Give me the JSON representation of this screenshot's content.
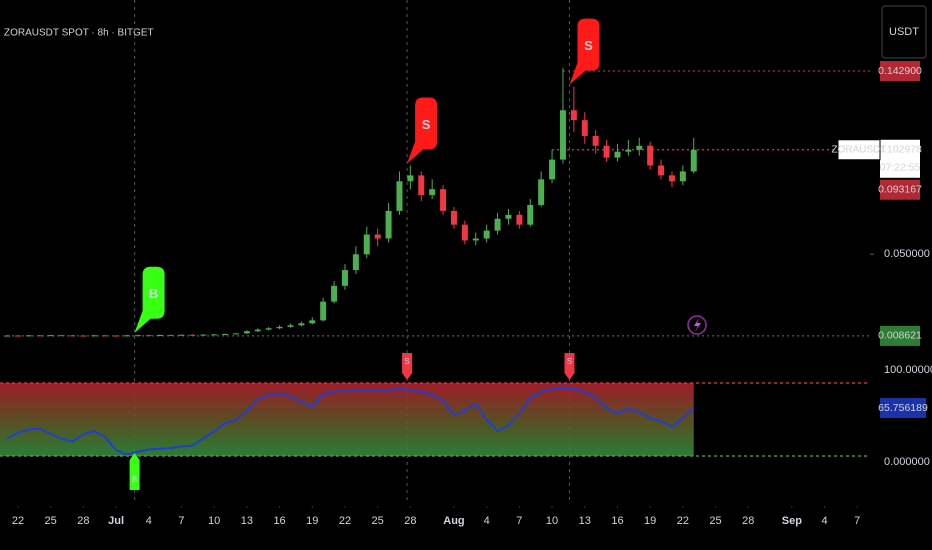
{
  "chart_data": [
    {
      "type": "candlestick",
      "title": "ZORAUSDT SPOT · 8h · BITGET",
      "currency": "USDT",
      "up_color": "#4caf50",
      "down_color": "#f23645",
      "xlim": [
        20.35,
        100.17
      ],
      "ylim": [
        -0.0112,
        0.1789
      ],
      "yticks": [
        {
          "value": 0.05,
          "label": "0.050000"
        }
      ],
      "x": [
        21,
        22,
        23,
        24,
        25,
        26,
        27,
        28,
        29,
        30,
        31,
        32,
        33,
        34,
        35,
        36,
        37,
        38,
        39,
        40,
        41,
        42,
        43,
        44,
        45,
        46,
        47,
        48,
        49,
        50,
        51,
        52,
        53,
        54,
        55,
        56,
        57,
        58,
        59,
        60,
        61,
        62,
        63,
        64,
        65,
        66,
        67,
        68,
        69,
        70,
        71,
        72,
        73,
        74,
        75,
        76,
        77,
        78,
        79,
        80,
        81,
        82,
        83,
        84
      ],
      "open": [
        0.0087,
        0.0088,
        0.0087,
        0.0089,
        0.0088,
        0.009,
        0.0089,
        0.0088,
        0.0087,
        0.0089,
        0.0088,
        0.0086,
        0.0089,
        0.009,
        0.0089,
        0.0091,
        0.009,
        0.0092,
        0.0091,
        0.0093,
        0.0094,
        0.0096,
        0.0099,
        0.011,
        0.0118,
        0.0125,
        0.0132,
        0.014,
        0.015,
        0.0165,
        0.026,
        0.034,
        0.042,
        0.05,
        0.06,
        0.058,
        0.072,
        0.087,
        0.09,
        0.08,
        0.083,
        0.072,
        0.065,
        0.057,
        0.058,
        0.062,
        0.068,
        0.07,
        0.065,
        0.075,
        0.088,
        0.098,
        0.123,
        0.118,
        0.11,
        0.105,
        0.099,
        0.102,
        0.103,
        0.105,
        0.095,
        0.09,
        0.087,
        0.092
      ],
      "high": [
        0.009,
        0.009,
        0.0091,
        0.0091,
        0.0092,
        0.0092,
        0.0091,
        0.009,
        0.0091,
        0.0091,
        0.009,
        0.0091,
        0.0092,
        0.0092,
        0.0093,
        0.0093,
        0.0094,
        0.0094,
        0.0095,
        0.0096,
        0.0098,
        0.0101,
        0.0115,
        0.0124,
        0.0131,
        0.014,
        0.0148,
        0.016,
        0.018,
        0.028,
        0.0365,
        0.045,
        0.054,
        0.064,
        0.063,
        0.076,
        0.092,
        0.095,
        0.092,
        0.088,
        0.085,
        0.074,
        0.067,
        0.061,
        0.065,
        0.071,
        0.073,
        0.072,
        0.078,
        0.092,
        0.103,
        0.1444,
        0.135,
        0.122,
        0.113,
        0.108,
        0.106,
        0.108,
        0.109,
        0.107,
        0.098,
        0.092,
        0.095,
        0.109
      ],
      "low": [
        0.0085,
        0.0085,
        0.0085,
        0.0086,
        0.0086,
        0.0087,
        0.0086,
        0.0085,
        0.0085,
        0.0086,
        0.0084,
        0.0084,
        0.0087,
        0.0087,
        0.0087,
        0.0088,
        0.0088,
        0.0089,
        0.0089,
        0.0091,
        0.0092,
        0.0094,
        0.0096,
        0.0106,
        0.0114,
        0.012,
        0.0128,
        0.0135,
        0.0145,
        0.016,
        0.025,
        0.032,
        0.04,
        0.048,
        0.054,
        0.056,
        0.07,
        0.083,
        0.077,
        0.078,
        0.07,
        0.063,
        0.055,
        0.0545,
        0.056,
        0.06,
        0.065,
        0.063,
        0.064,
        0.074,
        0.086,
        0.096,
        0.112,
        0.106,
        0.101,
        0.097,
        0.097,
        0.1,
        0.1,
        0.093,
        0.088,
        0.084,
        0.085,
        0.091
      ],
      "close": [
        0.0088,
        0.0087,
        0.0089,
        0.0088,
        0.009,
        0.0089,
        0.0088,
        0.0087,
        0.0089,
        0.0088,
        0.0086,
        0.0089,
        0.009,
        0.0089,
        0.0091,
        0.009,
        0.0092,
        0.0091,
        0.0093,
        0.0094,
        0.0096,
        0.0099,
        0.011,
        0.0118,
        0.0125,
        0.0132,
        0.014,
        0.015,
        0.0165,
        0.026,
        0.034,
        0.042,
        0.05,
        0.06,
        0.058,
        0.072,
        0.087,
        0.09,
        0.08,
        0.083,
        0.072,
        0.065,
        0.057,
        0.058,
        0.062,
        0.068,
        0.07,
        0.065,
        0.075,
        0.088,
        0.098,
        0.123,
        0.118,
        0.11,
        0.105,
        0.099,
        0.102,
        0.103,
        0.105,
        0.095,
        0.09,
        0.087,
        0.092,
        0.102978
      ],
      "signals": [
        {
          "x": 32.7,
          "label": "B",
          "color": "#39ff14"
        },
        {
          "x": 57.7,
          "label": "S",
          "color": "#ff1a1a"
        },
        {
          "x": 72.6,
          "label": "S",
          "color": "#ff1a1a"
        }
      ],
      "price_tags": [
        {
          "value": 0.1429,
          "label": "0.142900",
          "color": "#b22833",
          "line": true
        },
        {
          "value": 0.102978,
          "label": "0.102978",
          "name": "ZORAUSDT",
          "countdown": "07:22:55",
          "color": "#ffffff",
          "line": true
        },
        {
          "value": 0.093167,
          "label": "0.093167",
          "color": "#b22833",
          "line": false
        },
        {
          "value": 0.008621,
          "label": "0.008621",
          "color": "#2e7d32",
          "line": true
        }
      ]
    },
    {
      "type": "line",
      "color": "#1e3fd0",
      "value_tag_color": "#1a33a8",
      "band_colors": [
        "#f23645",
        "#4caf50"
      ],
      "xlim": [
        20.35,
        100.17
      ],
      "ylim": [
        -26,
        111
      ],
      "yticks": [
        {
          "value": 100,
          "label": "100.000000"
        },
        {
          "value": 0,
          "label": "0.000000"
        }
      ],
      "xticks": [
        22,
        25,
        28,
        {
          "value": 31,
          "label": "Jul"
        },
        {
          "value": 34,
          "label": "4"
        },
        {
          "value": 37,
          "label": "7"
        },
        {
          "value": 40,
          "label": "10"
        },
        {
          "value": 43,
          "label": "13"
        },
        {
          "value": 46,
          "label": "16"
        },
        {
          "value": 49,
          "label": "19"
        },
        {
          "value": 52,
          "label": "22"
        },
        {
          "value": 55,
          "label": "25"
        },
        {
          "value": 58,
          "label": "28"
        },
        {
          "value": 62,
          "label": "Aug"
        },
        {
          "value": 65,
          "label": "4"
        },
        {
          "value": 68,
          "label": "7"
        },
        {
          "value": 71,
          "label": "10"
        },
        {
          "value": 74,
          "label": "13"
        },
        {
          "value": 77,
          "label": "16"
        },
        {
          "value": 80,
          "label": "19"
        },
        {
          "value": 83,
          "label": "22"
        },
        {
          "value": 86,
          "label": "25"
        },
        {
          "value": 89,
          "label": "28"
        },
        {
          "value": 93,
          "label": "Sep"
        },
        {
          "value": 96,
          "label": "4"
        },
        {
          "value": 99,
          "label": "7"
        }
      ],
      "x": [
        21,
        22,
        23,
        24,
        25,
        26,
        27,
        28,
        29,
        30,
        31,
        32,
        33,
        34,
        35,
        36,
        37,
        38,
        39,
        40,
        41,
        42,
        43,
        44,
        45,
        46,
        47,
        48,
        49,
        50,
        51,
        52,
        53,
        54,
        55,
        56,
        57,
        58,
        59,
        60,
        61,
        62,
        63,
        64,
        65,
        66,
        67,
        68,
        69,
        70,
        71,
        72,
        73,
        74,
        75,
        76,
        77,
        78,
        79,
        80,
        81,
        82,
        83,
        84
      ],
      "values": [
        24,
        32,
        36,
        38,
        30,
        24,
        20,
        30,
        34,
        26,
        8,
        2,
        6,
        9,
        10,
        11,
        13,
        14,
        24,
        34,
        45,
        49,
        62,
        78,
        84,
        86,
        82,
        74,
        68,
        85,
        88,
        90,
        90,
        90,
        90,
        90,
        92,
        90,
        88,
        84,
        76,
        56,
        62,
        72,
        50,
        34,
        42,
        58,
        80,
        88,
        92,
        94,
        92,
        88,
        80,
        66,
        58,
        65,
        60,
        52,
        48,
        40,
        52,
        65.756189
      ],
      "signals": [
        {
          "x": 57.7,
          "label": "S",
          "color": "#f23645",
          "position": "top"
        },
        {
          "x": 72.6,
          "label": "S",
          "color": "#f23645",
          "position": "top"
        },
        {
          "x": 32.7,
          "label": "B",
          "color": "#39ff14",
          "position": "bottom"
        }
      ]
    }
  ]
}
